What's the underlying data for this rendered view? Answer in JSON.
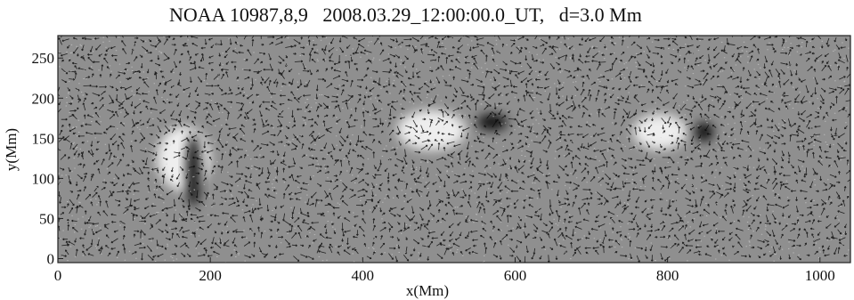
{
  "figure": {
    "title": "NOAA 10987,8,9   2008.03.29_12:00:00.0_UT,   d=3.0 Mm",
    "xlabel": "x(Mm)",
    "ylabel": "y(Mm)",
    "x_ticks": [
      "0",
      "200",
      "400",
      "600",
      "800",
      "1000"
    ],
    "y_ticks": [
      "0",
      "50",
      "100",
      "150",
      "200",
      "250"
    ],
    "x_range": [
      0,
      1040
    ],
    "y_range": [
      -5,
      278
    ],
    "colors": {
      "background_gray": "#8f8f8f",
      "vector_color": "#0c0c0c",
      "positive_polarity": "#ffffff",
      "negative_polarity": "#000000"
    },
    "features": [
      {
        "kind": "white",
        "x": 165,
        "y": 125,
        "rx": 35,
        "ry": 40
      },
      {
        "kind": "black",
        "x": 178,
        "y": 110,
        "rx": 10,
        "ry": 45
      },
      {
        "kind": "white",
        "x": 490,
        "y": 160,
        "rx": 45,
        "ry": 25
      },
      {
        "kind": "black",
        "x": 570,
        "y": 170,
        "rx": 20,
        "ry": 10
      },
      {
        "kind": "white",
        "x": 790,
        "y": 158,
        "rx": 35,
        "ry": 22
      },
      {
        "kind": "black",
        "x": 848,
        "y": 158,
        "rx": 12,
        "ry": 12
      }
    ]
  }
}
